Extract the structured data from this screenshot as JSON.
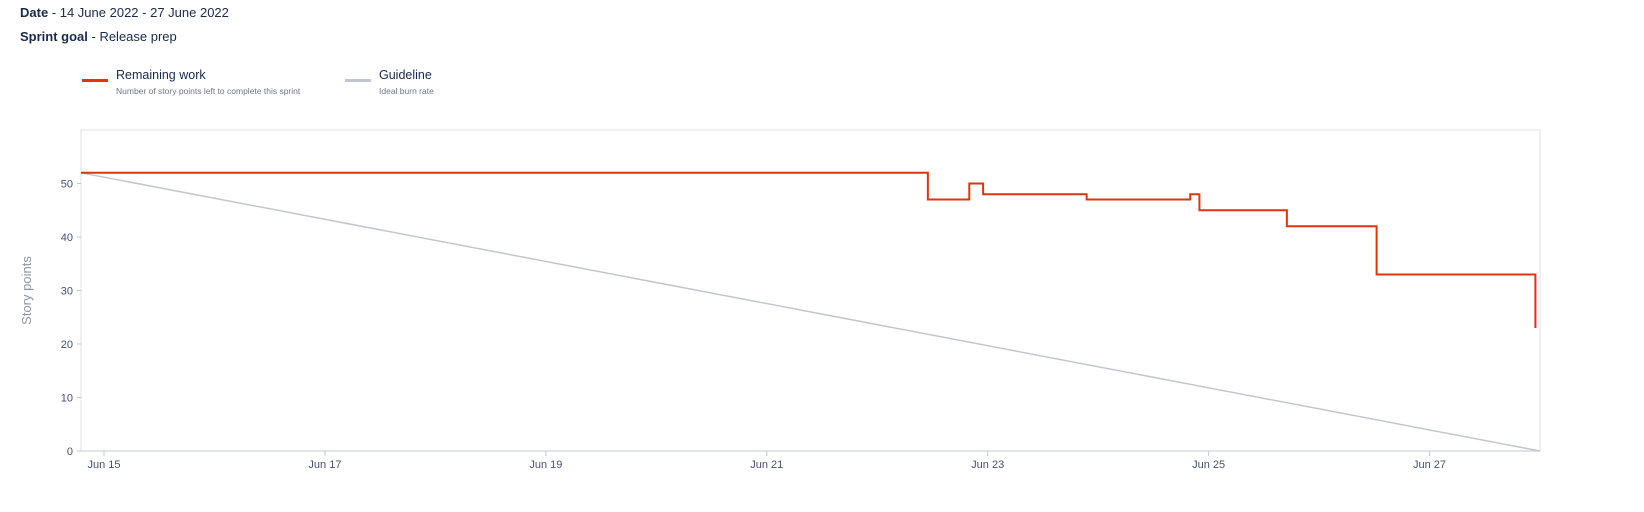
{
  "header": {
    "date_label": "Date",
    "date_value": " - 14 June 2022 - 27 June 2022",
    "goal_label": "Sprint goal",
    "goal_value": " - Release prep"
  },
  "legend": [
    {
      "title": "Remaining work",
      "subtitle": "Number of story points left to complete this sprint",
      "color": "#de350b"
    },
    {
      "title": "Guideline",
      "subtitle": "Ideal burn rate",
      "color": "#c1c7d0"
    }
  ],
  "chart_data": {
    "type": "line",
    "title": "",
    "xlabel": "",
    "ylabel": "Story points",
    "ylim": [
      0,
      60
    ],
    "xlim": [
      "2022-06-14T19:00",
      "2022-06-28T00:00"
    ],
    "yticks": [
      0,
      10,
      20,
      30,
      40,
      50
    ],
    "xticks": [
      {
        "date": "2022-06-15T00:00",
        "label": "Jun 15"
      },
      {
        "date": "2022-06-17T00:00",
        "label": "Jun 17"
      },
      {
        "date": "2022-06-19T00:00",
        "label": "Jun 19"
      },
      {
        "date": "2022-06-21T00:00",
        "label": "Jun 21"
      },
      {
        "date": "2022-06-23T00:00",
        "label": "Jun 23"
      },
      {
        "date": "2022-06-25T00:00",
        "label": "Jun 25"
      },
      {
        "date": "2022-06-27T00:00",
        "label": "Jun 27"
      }
    ],
    "grid": false,
    "series": [
      {
        "name": "Remaining work",
        "color": "#de350b",
        "step": true,
        "points": [
          {
            "x": "2022-06-14T19:00",
            "y": 52
          },
          {
            "x": "2022-06-22T11:00",
            "y": 47
          },
          {
            "x": "2022-06-22T20:00",
            "y": 50
          },
          {
            "x": "2022-06-22T23:00",
            "y": 48
          },
          {
            "x": "2022-06-23T21:30",
            "y": 47
          },
          {
            "x": "2022-06-24T20:00",
            "y": 48
          },
          {
            "x": "2022-06-24T22:00",
            "y": 45
          },
          {
            "x": "2022-06-25T17:00",
            "y": 42
          },
          {
            "x": "2022-06-26T12:30",
            "y": 33
          },
          {
            "x": "2022-06-27T23:00",
            "y": 23
          }
        ]
      },
      {
        "name": "Guideline",
        "color": "#c1c7d0",
        "step": false,
        "points": [
          {
            "x": "2022-06-14T19:00",
            "y": 52
          },
          {
            "x": "2022-06-28T00:00",
            "y": 0
          }
        ]
      }
    ]
  }
}
